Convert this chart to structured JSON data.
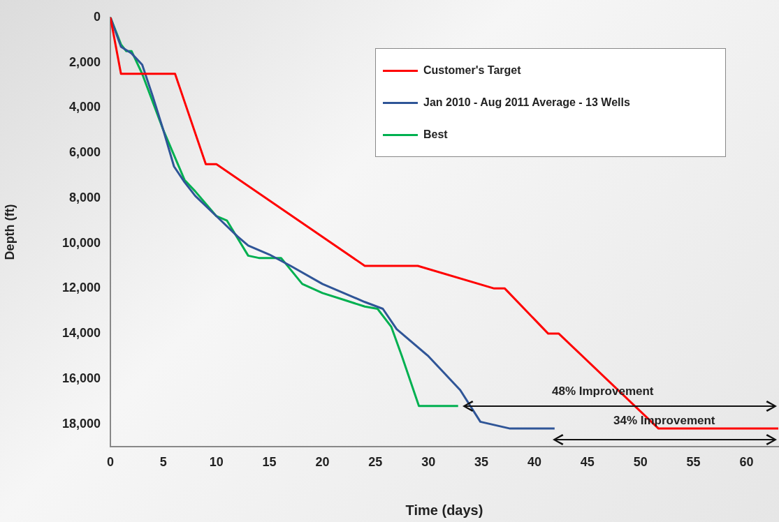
{
  "chart_data": {
    "type": "line",
    "xlabel": "Time (days)",
    "ylabel": "Depth (ft)",
    "xlim": [
      0,
      63
    ],
    "xticks": [
      0,
      5,
      10,
      15,
      20,
      25,
      30,
      35,
      40,
      45,
      50,
      55,
      60
    ],
    "ylim": [
      19000,
      0
    ],
    "yticks": [
      0,
      {
        "value": 2000,
        "label": "2,000"
      },
      {
        "value": 4000,
        "label": "4,000"
      },
      {
        "value": 6000,
        "label": "6,000"
      },
      {
        "value": 8000,
        "label": "8,000"
      },
      {
        "value": 10000,
        "label": "10,000"
      },
      {
        "value": 12000,
        "label": "12,000"
      },
      {
        "value": 14000,
        "label": "14,000"
      },
      {
        "value": 16000,
        "label": "16,000"
      },
      {
        "value": 18000,
        "label": "18,000"
      }
    ],
    "grid": false,
    "legend": "top right",
    "marker": "none",
    "line_style": "solid",
    "series": [
      {
        "name": "Customer's Target",
        "color": "#ff0000",
        "x": [
          0,
          1,
          6.1,
          9,
          10,
          24,
          29,
          36.2,
          37.2,
          41.3,
          42.3,
          51.7,
          63
        ],
        "values": [
          0,
          2500,
          2500,
          6500,
          6500,
          11000,
          11000,
          12000,
          12000,
          14000,
          14000,
          18200,
          18200
        ]
      },
      {
        "name": "Jan 2010 - Aug 2011 Average - 13 Wells",
        "color": "#2f5597",
        "x": [
          0,
          1,
          2,
          3,
          4,
          5,
          6,
          7,
          8,
          10,
          12,
          13,
          15,
          17,
          20,
          24,
          25.7,
          27,
          30,
          33,
          34.9,
          37.7,
          41.9
        ],
        "values": [
          0,
          1300,
          1600,
          2100,
          3500,
          5000,
          6600,
          7300,
          7900,
          8800,
          9700,
          10100,
          10500,
          11000,
          11800,
          12600,
          12900,
          13800,
          15000,
          16500,
          17900,
          18200,
          18200
        ]
      },
      {
        "name": "Best",
        "color": "#00b050",
        "x": [
          0,
          1,
          1.5,
          2,
          3,
          5,
          7,
          8,
          10,
          11,
          13,
          14,
          16.1,
          18.1,
          20,
          22,
          24,
          25.2,
          26.5,
          27.5,
          29.1,
          32.8
        ],
        "values": [
          0,
          1200,
          1500,
          1500,
          2500,
          5000,
          7200,
          7700,
          8800,
          9000,
          10550,
          10650,
          10650,
          11800,
          12200,
          12500,
          12800,
          12900,
          13700,
          15000,
          17200,
          17200
        ]
      }
    ],
    "annotations": [
      "48% Improvement",
      "34% Improvement"
    ]
  }
}
